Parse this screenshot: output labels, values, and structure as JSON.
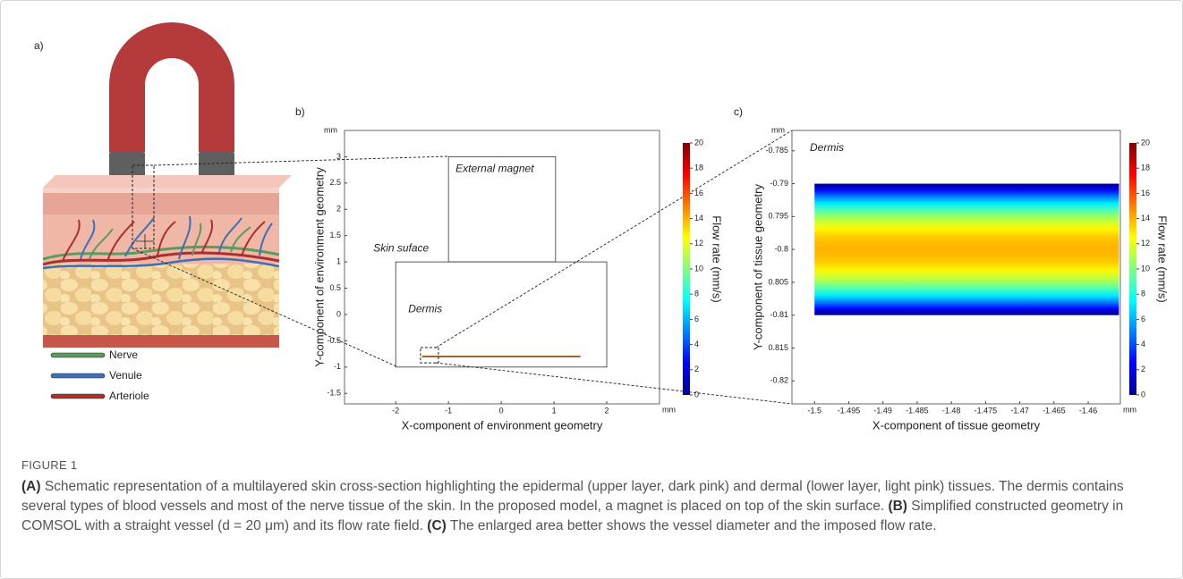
{
  "panel_labels": [
    "a)",
    "b)",
    "c)"
  ],
  "legend_a": [
    {
      "name": "Nerve",
      "color": "#5b9b5d"
    },
    {
      "name": "Venule",
      "color": "#3d6fb5"
    },
    {
      "name": "Arteriole",
      "color": "#a8302e"
    }
  ],
  "chart_data": [
    {
      "type": "geometry",
      "xlabel": "X-component of environment geometry",
      "ylabel": "Y-component of environment geometry",
      "unit": "mm",
      "xlim": [
        -2.97,
        3
      ],
      "ylim": [
        -1.7,
        3.5
      ],
      "xticks": [
        -2,
        -1,
        0,
        1,
        2
      ],
      "yticks": [
        3,
        2.5,
        2,
        1.5,
        1,
        0.5,
        0,
        -0.5,
        -1,
        -1.5
      ],
      "shapes": [
        {
          "label": "External magnet",
          "xlim": [
            -1,
            1.03
          ],
          "ylim": [
            1,
            3
          ]
        },
        {
          "label": "Dermis",
          "xlim": [
            -2,
            2
          ],
          "ylim": [
            -1,
            1
          ]
        }
      ],
      "annotation": "Skin suface",
      "vessel": {
        "x": [
          -1.5,
          1.5
        ],
        "y": -0.8,
        "color": "#a0642a"
      },
      "zoom_box": {
        "xlim": [
          -1.53,
          -1.19
        ],
        "ylim": [
          -0.92,
          -0.63
        ]
      },
      "colorbar": {
        "label": "Flow rate (mm/s)",
        "lim": [
          0,
          20
        ],
        "ticks": [
          0,
          2,
          4,
          6,
          8,
          10,
          12,
          14,
          16,
          18,
          20
        ]
      }
    },
    {
      "type": "field",
      "xlabel": "X-component of tissue geometry",
      "ylabel": "Y-component of tissue geometry",
      "unit": "mm",
      "title": "Dermis",
      "xlim": [
        -1.5033,
        -1.4553
      ],
      "ylim": [
        -0.8235,
        -0.7819
      ],
      "xticks": [
        -1.5,
        -1.495,
        -1.49,
        -1.485,
        -1.48,
        -1.475,
        -1.47,
        -1.465,
        -1.46
      ],
      "yticks": [
        -0.785,
        -0.79,
        {
          "value": -0.795,
          "label": "0.795"
        },
        -0.8,
        {
          "value": -0.805,
          "label": "0.805"
        },
        -0.81,
        {
          "value": -0.815,
          "label": "0.815"
        },
        -0.82
      ],
      "field": {
        "xlim": [
          -1.5,
          -1.4555
        ],
        "ylim": [
          -0.81,
          -0.79
        ],
        "peak": 14
      },
      "colorbar": {
        "label": "Flow rate (mm/s)",
        "lim": [
          0,
          20
        ],
        "ticks": [
          0,
          2,
          4,
          6,
          8,
          10,
          12,
          14,
          16,
          18,
          20
        ]
      }
    }
  ],
  "figure_label": "FIGURE 1",
  "caption": [
    "(A)",
    " Schematic representation of a multilayered skin cross-section highlighting the epidermal (upper layer, dark pink) and dermal (lower layer, light pink) tissues. The dermis contains several types of blood vessels and most of the nerve tissue of the skin. In the proposed model, a magnet is placed on top of the skin surface. ",
    "(B)",
    " Simplified constructed geometry in COMSOL with a straight vessel (d = 20 μm) and its flow rate field. ",
    "(C)",
    " The enlarged area better shows the vessel diameter and the imposed flow rate."
  ]
}
